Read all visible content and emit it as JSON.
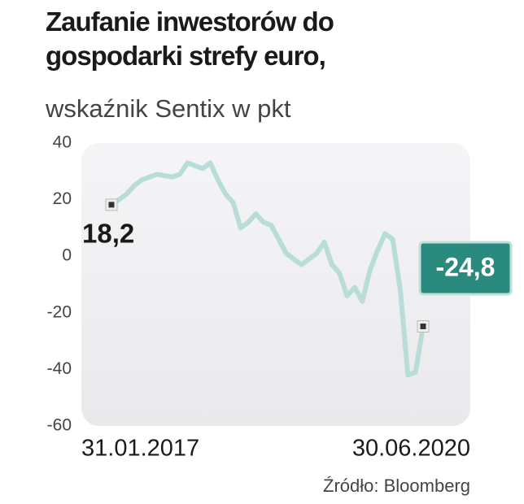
{
  "chart_data": {
    "type": "line",
    "title": "Zaufanie inwestorów do gospodarki strefy euro,",
    "subtitle": "wskaźnik Sentix w pkt",
    "source": "Źródło: Bloomberg",
    "categories": [
      "31.01.2017",
      null,
      null,
      null,
      null,
      null,
      null,
      null,
      null,
      null,
      null,
      null,
      null,
      null,
      null,
      null,
      null,
      null,
      null,
      null,
      null,
      null,
      null,
      null,
      null,
      null,
      null,
      null,
      null,
      null,
      null,
      null,
      null,
      null,
      null,
      null,
      null,
      null,
      null,
      null,
      null,
      "30.06.2020"
    ],
    "series": [
      {
        "name": "Sentix",
        "color": "#b8ddd8",
        "values": [
          18.2,
          20,
          22,
          25,
          27,
          28,
          29,
          28.5,
          28,
          29,
          33,
          32,
          31,
          33,
          27,
          22,
          19,
          10,
          12,
          15,
          12,
          11,
          6,
          1,
          -1,
          -3,
          -1,
          1,
          5,
          -3,
          -6,
          -14,
          -11,
          -16,
          -5,
          2,
          8,
          6,
          -12,
          -42,
          -41,
          -24.8
        ],
        "value_labels": [
          "18,2",
          null,
          null,
          null,
          null,
          null,
          null,
          null,
          null,
          null,
          null,
          null,
          null,
          null,
          null,
          null,
          null,
          null,
          null,
          null,
          null,
          null,
          null,
          null,
          null,
          null,
          null,
          null,
          null,
          null,
          null,
          null,
          null,
          null,
          null,
          null,
          null,
          null,
          null,
          null,
          null,
          "-24,8"
        ]
      }
    ],
    "ylim": [
      -60,
      40
    ],
    "yticks": [
      -60,
      -40,
      -20,
      0,
      20,
      40
    ],
    "grid": false
  }
}
